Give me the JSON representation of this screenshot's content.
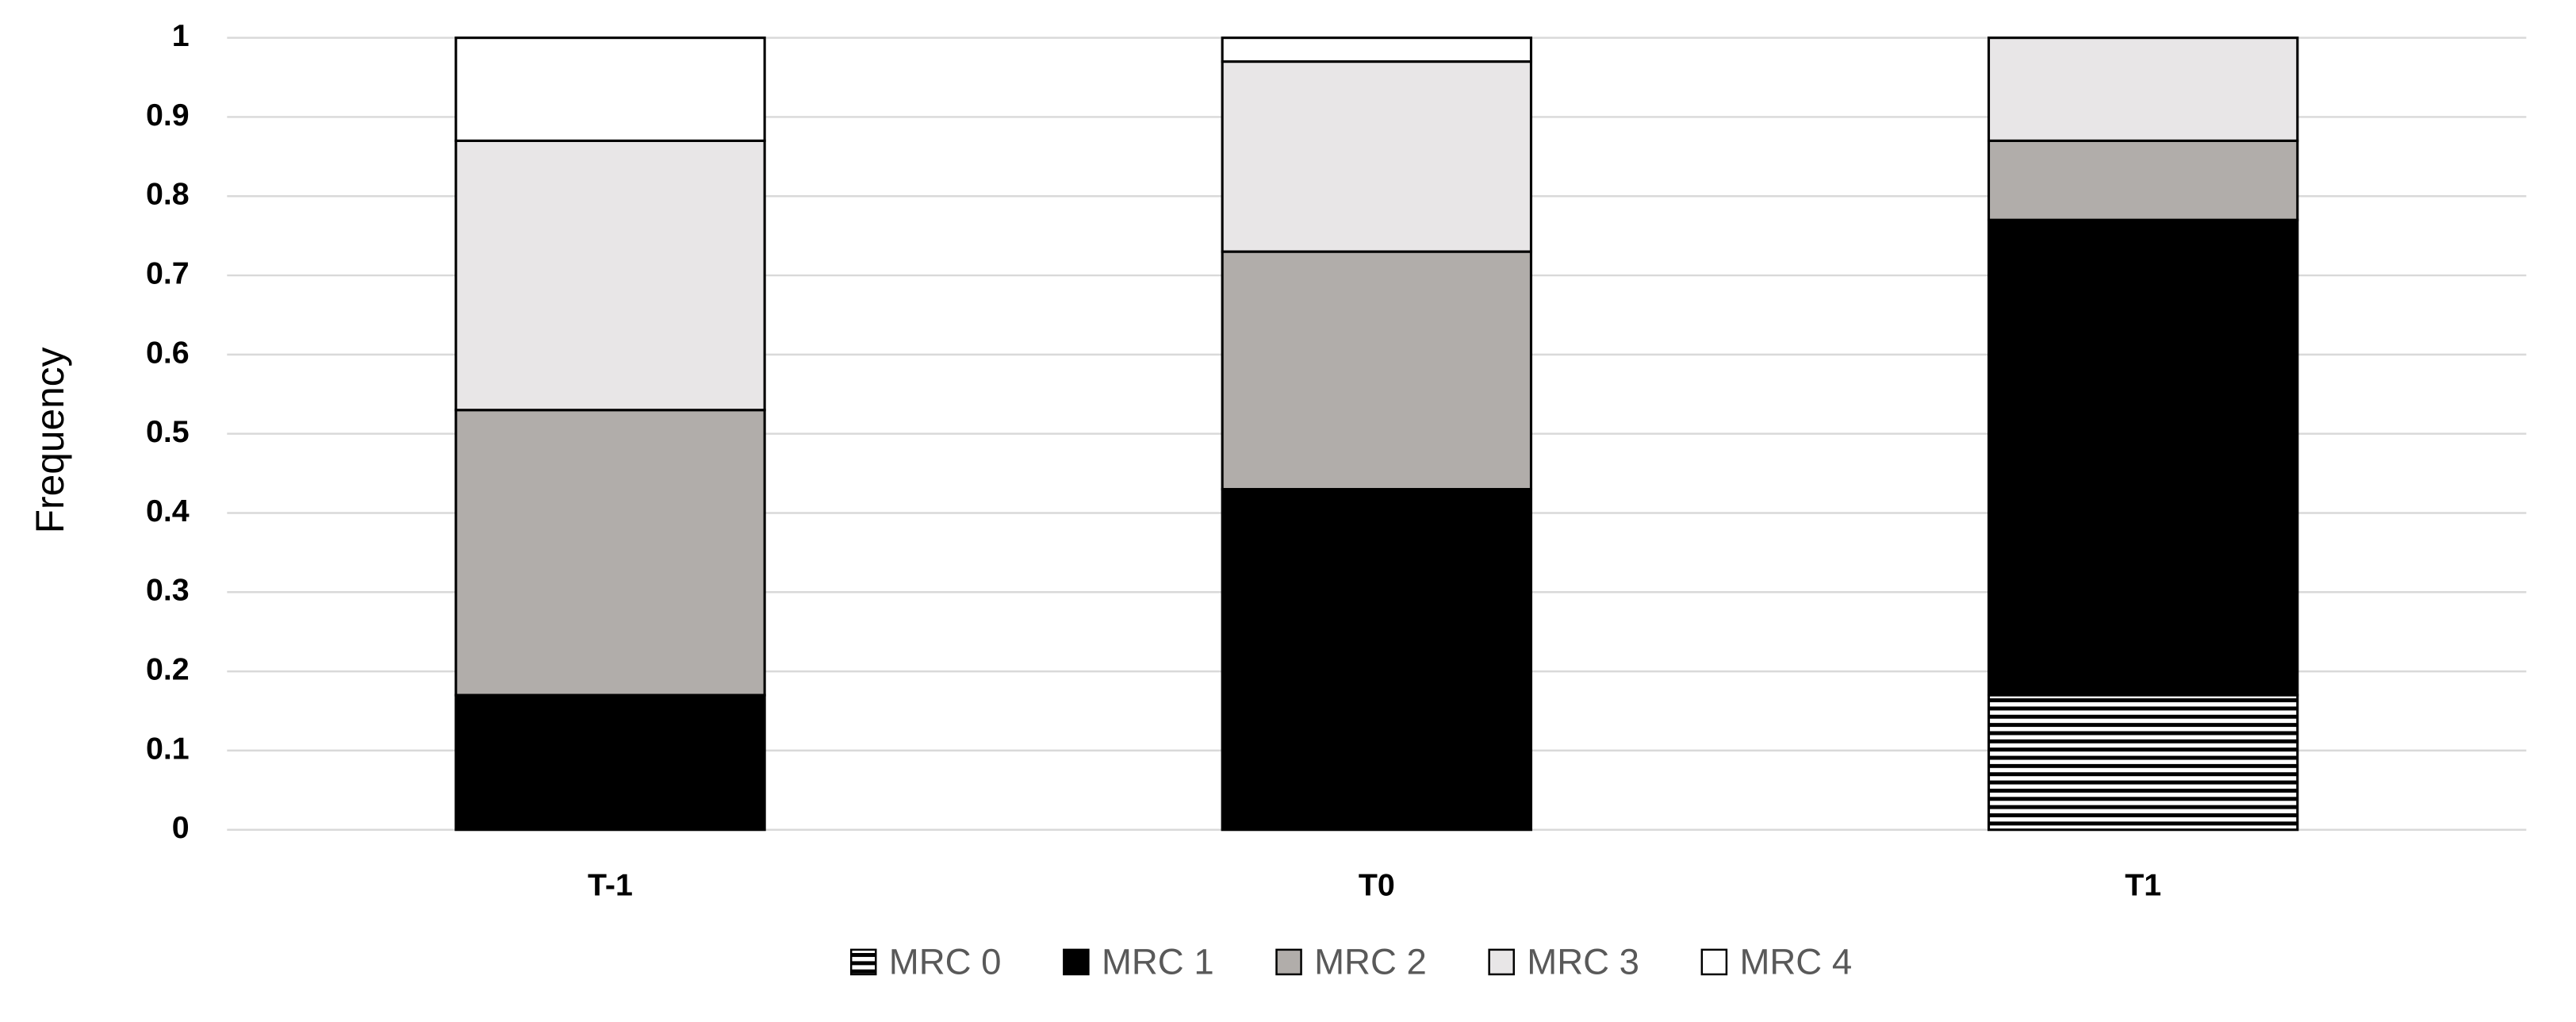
{
  "chart_data": {
    "type": "stacked-bar",
    "y_label": "Frequency",
    "categories": [
      "T-1",
      "T0",
      "T1"
    ],
    "series": [
      {
        "name": "MRC 0",
        "color": "#000000",
        "pattern": "horizontal-stripes",
        "values": [
          0,
          0,
          0.17
        ]
      },
      {
        "name": "MRC 1",
        "color": "#000000",
        "values": [
          0.17,
          0.43,
          0.6
        ]
      },
      {
        "name": "MRC 2",
        "color": "#b1adaa",
        "values": [
          0.36,
          0.3,
          0.1
        ]
      },
      {
        "name": "MRC 3",
        "color": "#e8e6e7",
        "values": [
          0.34,
          0.24,
          0.13
        ]
      },
      {
        "name": "MRC 4",
        "color": "#ffffff",
        "values": [
          0.13,
          0.03,
          0
        ]
      }
    ],
    "ylim": [
      0,
      1
    ],
    "yticks": [
      0,
      0.1,
      0.2,
      0.3,
      0.4,
      0.5,
      0.6,
      0.7,
      0.8,
      0.9,
      1
    ],
    "grid": true,
    "legend": "bottom"
  }
}
